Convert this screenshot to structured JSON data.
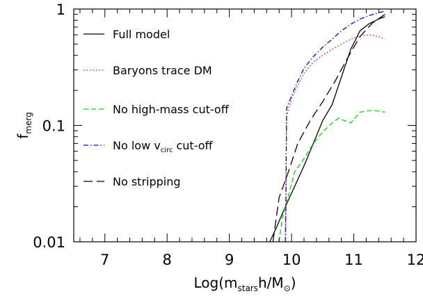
{
  "chart_data": {
    "type": "line",
    "title": "",
    "xlabel": {
      "prefix": "Log(m",
      "sub": "stars",
      "mid": "h/M",
      "tail": ")"
    },
    "ylabel": {
      "main": "f",
      "sub": "merg"
    },
    "xlim": [
      6.5,
      12
    ],
    "ylim": [
      0.01,
      1
    ],
    "yscale": "log",
    "grid": false,
    "legend_position": "top-left",
    "x_ticks": [
      7,
      8,
      9,
      10,
      11,
      12
    ],
    "y_ticks": [
      0.01,
      0.1,
      1
    ],
    "x_tick_labels": [
      "7",
      "8",
      "9",
      "10",
      "11",
      "12"
    ],
    "y_tick_labels": [
      "0.01",
      "0.1",
      "1"
    ],
    "series": [
      {
        "name": "Full model",
        "color": "#000000",
        "dash": "",
        "x": [
          9.65,
          9.75,
          9.9,
          10.05,
          10.2,
          10.35,
          10.5,
          10.65,
          10.8,
          10.95,
          11.1,
          11.25,
          11.4,
          11.5
        ],
        "y": [
          0.01,
          0.013,
          0.02,
          0.03,
          0.045,
          0.07,
          0.11,
          0.15,
          0.26,
          0.45,
          0.65,
          0.75,
          0.82,
          0.86
        ]
      },
      {
        "name": "Baryons trace DM",
        "color": "#ff0000",
        "dash": "1.5 3",
        "x": [
          9.9,
          9.92,
          10.0,
          10.1,
          10.2,
          10.35,
          10.5,
          10.65,
          10.8,
          10.95,
          11.1,
          11.25,
          11.4,
          11.5
        ],
        "y": [
          0.01,
          0.12,
          0.17,
          0.22,
          0.28,
          0.35,
          0.4,
          0.45,
          0.5,
          0.55,
          0.59,
          0.6,
          0.58,
          0.55
        ]
      },
      {
        "name": "No high-mass cut-off",
        "color": "#00dd00",
        "dash": "7 4",
        "x": [
          9.8,
          9.85,
          9.95,
          10.05,
          10.2,
          10.35,
          10.5,
          10.65,
          10.75,
          10.95,
          11.1,
          11.3,
          11.5
        ],
        "y": [
          0.01,
          0.016,
          0.025,
          0.04,
          0.052,
          0.07,
          0.088,
          0.105,
          0.115,
          0.105,
          0.13,
          0.135,
          0.13
        ]
      },
      {
        "name": "No low v<sub>circ</sub> cut-off",
        "label_main": "No low v",
        "label_sub": "circ",
        "label_tail": " cut-off",
        "color": "#0000ff",
        "dash": "7 3 1.5 3",
        "x": [
          9.9,
          9.91,
          9.92,
          10.0,
          10.1,
          10.2,
          10.35,
          10.5,
          10.65,
          10.8,
          10.95,
          11.1,
          11.25,
          11.4,
          11.5
        ],
        "y": [
          0.01,
          0.02,
          0.14,
          0.18,
          0.24,
          0.31,
          0.39,
          0.47,
          0.55,
          0.65,
          0.74,
          0.82,
          0.88,
          0.93,
          0.96
        ]
      },
      {
        "name": "No stripping",
        "color": "#000000",
        "dash": "13 6",
        "x": [
          9.7,
          9.8,
          9.95,
          10.1,
          10.3,
          10.5,
          10.7,
          10.9,
          11.1,
          11.3,
          11.5
        ],
        "y": [
          0.01,
          0.024,
          0.04,
          0.07,
          0.11,
          0.16,
          0.24,
          0.38,
          0.58,
          0.76,
          0.9
        ]
      }
    ]
  }
}
